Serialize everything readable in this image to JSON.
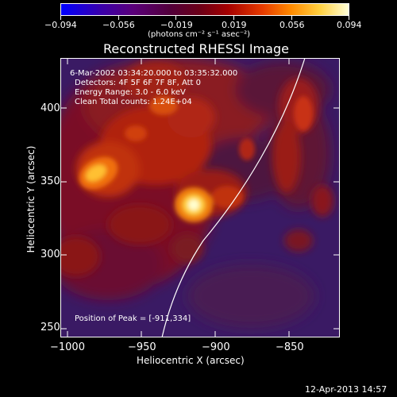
{
  "colorbar": {
    "ticks": [
      "−0.094",
      "−0.056",
      "−0.019",
      "0.019",
      "0.056",
      "0.094"
    ],
    "units": "(photons cm⁻² s⁻¹ asec⁻²)"
  },
  "plot": {
    "title": "Reconstructed RHESSI Image",
    "xlabel": "Heliocentric X (arcsec)",
    "ylabel": "Heliocentric Y (arcsec)",
    "xticks": [
      "−1000",
      "−950",
      "−900",
      "−850"
    ],
    "yticks": [
      "400",
      "350",
      "300",
      "250"
    ],
    "info_lines": [
      "6-Mar-2002 03:34:20.000 to 03:35:32.000",
      "Detectors: 4F 5F 6F 7F 8F, Att 0",
      "Energy Range: 3.0 - 6.0 keV",
      "Clean     Total counts: 1.24E+04"
    ],
    "peak_label": "Position of Peak = [-911,334]",
    "x_range": [
      -1005,
      -815
    ],
    "y_range": [
      243,
      433
    ]
  },
  "footer": {
    "timestamp": "12-Apr-2013 14:57"
  }
}
